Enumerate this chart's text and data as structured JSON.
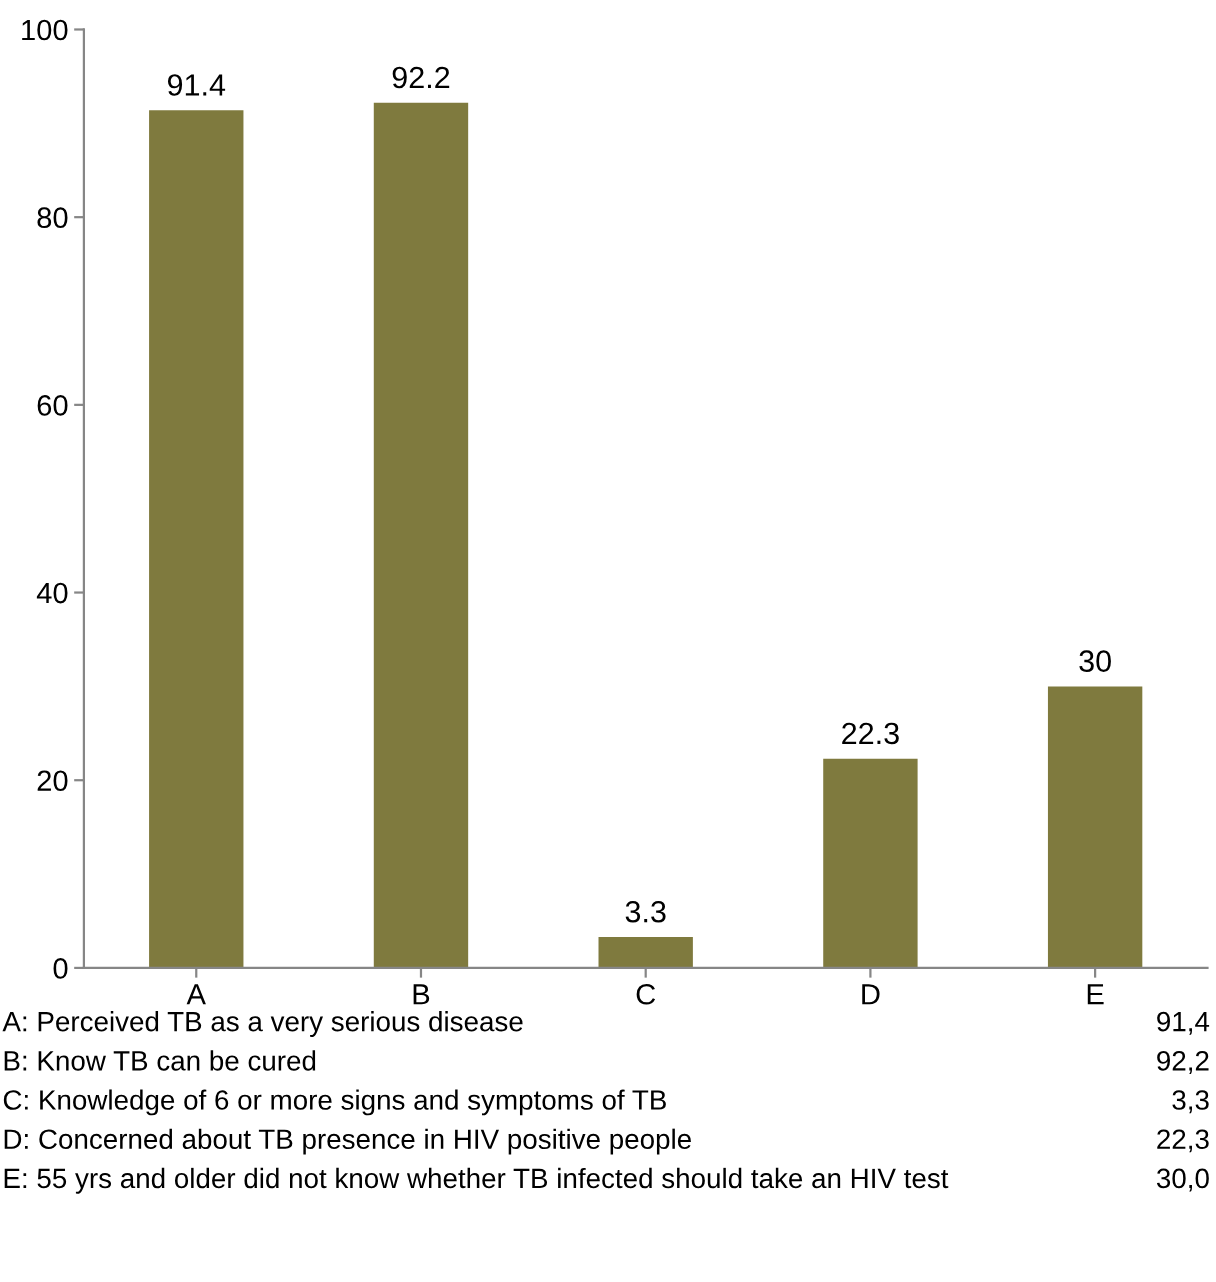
{
  "chart_data": {
    "type": "bar",
    "categories": [
      "A",
      "B",
      "C",
      "D",
      "E"
    ],
    "values": [
      91.4,
      92.2,
      3.3,
      22.3,
      30
    ],
    "color": "#7f7a3e",
    "ylim": [
      0,
      100
    ],
    "yticks": [
      0,
      20,
      40,
      60,
      80,
      100
    ],
    "grid": false,
    "data_labels": true,
    "annotations": [
      "A: Perceived TB as a very serious disease",
      "91,4",
      "B: Know TB can be cured",
      "92,2",
      "C: Knowledge of 6 or more signs and symptoms of TB",
      "3,3",
      "D: Concerned about TB presence in HIV positive people",
      "22,3",
      "E: 55 yrs and older did not know whether TB infected should take an HIV test",
      "30,0"
    ]
  }
}
